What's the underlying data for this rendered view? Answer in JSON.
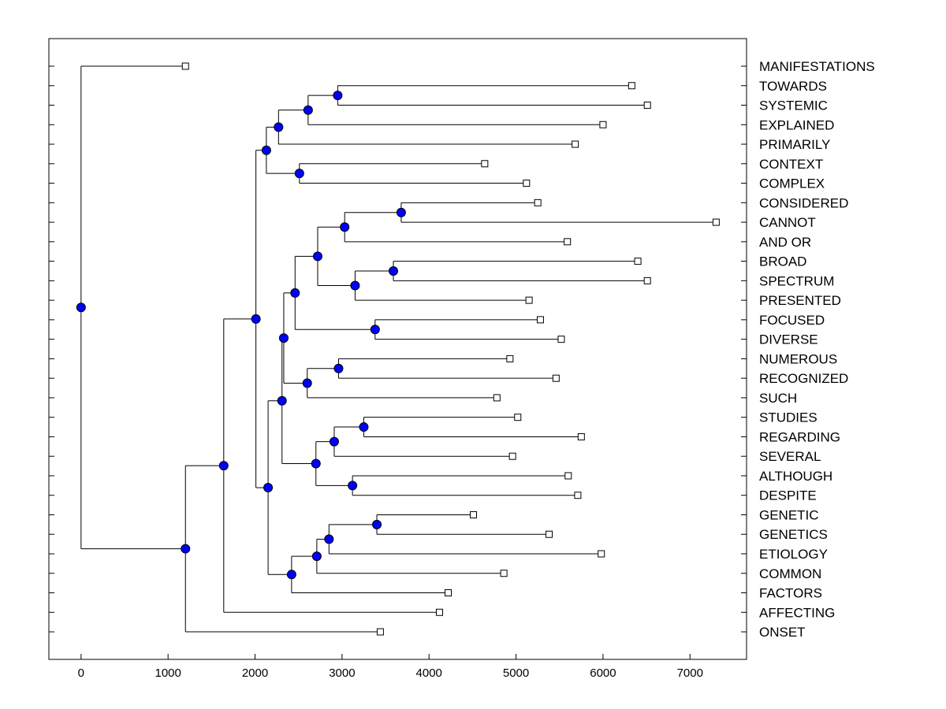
{
  "chart_data": {
    "type": "dendrogram",
    "title": "",
    "xlabel": "",
    "ylabel": "",
    "xlim": [
      -370,
      7650
    ],
    "x_ticks": [
      0,
      1000,
      2000,
      3000,
      4000,
      5000,
      6000,
      7000
    ],
    "x_tick_labels": [
      "0",
      "1000",
      "2000",
      "3000",
      "4000",
      "5000",
      "6000",
      "7000"
    ],
    "node_color": "#0000ff",
    "leaf_marker_color": "#ffffff",
    "leaves": [
      {
        "label": "MANIFESTATIONS",
        "value": 1200
      },
      {
        "label": "TOWARDS",
        "value": 6330
      },
      {
        "label": "SYSTEMIC",
        "value": 6510
      },
      {
        "label": "EXPLAINED",
        "value": 6000
      },
      {
        "label": "PRIMARILY",
        "value": 5680
      },
      {
        "label": "CONTEXT",
        "value": 4640
      },
      {
        "label": "COMPLEX",
        "value": 5120
      },
      {
        "label": "CONSIDERED",
        "value": 5250
      },
      {
        "label": "CANNOT",
        "value": 7300
      },
      {
        "label": "AND OR",
        "value": 5590
      },
      {
        "label": "BROAD",
        "value": 6400
      },
      {
        "label": "SPECTRUM",
        "value": 6510
      },
      {
        "label": "PRESENTED",
        "value": 5150
      },
      {
        "label": "FOCUSED",
        "value": 5280
      },
      {
        "label": "DIVERSE",
        "value": 5520
      },
      {
        "label": "NUMEROUS",
        "value": 4930
      },
      {
        "label": "RECOGNIZED",
        "value": 5460
      },
      {
        "label": "SUCH",
        "value": 4780
      },
      {
        "label": "STUDIES",
        "value": 5020
      },
      {
        "label": "REGARDING",
        "value": 5750
      },
      {
        "label": "SEVERAL",
        "value": 4960
      },
      {
        "label": "ALTHOUGH",
        "value": 5600
      },
      {
        "label": "DESPITE",
        "value": 5710
      },
      {
        "label": "GENETIC",
        "value": 4510
      },
      {
        "label": "GENETICS",
        "value": 5380
      },
      {
        "label": "ETIOLOGY",
        "value": 5980
      },
      {
        "label": "COMMON",
        "value": 4860
      },
      {
        "label": "FACTORS",
        "value": 4220
      },
      {
        "label": "AFFECTING",
        "value": 4120
      },
      {
        "label": "ONSET",
        "value": 3440
      }
    ],
    "tree": {
      "v": 0,
      "c": [
        {
          "leaf": 0
        },
        {
          "v": 1200,
          "c": [
            {
              "v": 1640,
              "c": [
                {
                  "v": 2010,
                  "c": [
                    {
                      "v": 2130,
                      "c": [
                        {
                          "v": 2270,
                          "c": [
                            {
                              "v": 2610,
                              "c": [
                                {
                                  "v": 2950,
                                  "c": [
                                    {
                                      "leaf": 1
                                    },
                                    {
                                      "leaf": 2
                                    }
                                  ]
                                },
                                {
                                  "leaf": 3
                                }
                              ]
                            },
                            {
                              "leaf": 4
                            }
                          ]
                        },
                        {
                          "v": 2510,
                          "c": [
                            {
                              "leaf": 5
                            },
                            {
                              "leaf": 6
                            }
                          ]
                        }
                      ]
                    },
                    {
                      "v": 2150,
                      "c": [
                        {
                          "v": 2310,
                          "c": [
                            {
                              "v": 2330,
                              "c": [
                                {
                                  "v": 2460,
                                  "c": [
                                    {
                                      "v": 2720,
                                      "c": [
                                        {
                                          "v": 3030,
                                          "c": [
                                            {
                                              "v": 3680,
                                              "c": [
                                                {
                                                  "leaf": 7
                                                },
                                                {
                                                  "leaf": 8
                                                }
                                              ]
                                            },
                                            {
                                              "leaf": 9
                                            }
                                          ]
                                        },
                                        {
                                          "v": 3150,
                                          "c": [
                                            {
                                              "v": 3590,
                                              "c": [
                                                {
                                                  "leaf": 10
                                                },
                                                {
                                                  "leaf": 11
                                                }
                                              ]
                                            },
                                            {
                                              "leaf": 12
                                            }
                                          ]
                                        }
                                      ]
                                    },
                                    {
                                      "v": 3380,
                                      "c": [
                                        {
                                          "leaf": 13
                                        },
                                        {
                                          "leaf": 14
                                        }
                                      ]
                                    }
                                  ]
                                },
                                {
                                  "v": 2600,
                                  "c": [
                                    {
                                      "v": 2960,
                                      "c": [
                                        {
                                          "leaf": 15
                                        },
                                        {
                                          "leaf": 16
                                        }
                                      ]
                                    },
                                    {
                                      "leaf": 17
                                    }
                                  ]
                                }
                              ]
                            },
                            {
                              "v": 2700,
                              "c": [
                                {
                                  "v": 2910,
                                  "c": [
                                    {
                                      "v": 3250,
                                      "c": [
                                        {
                                          "leaf": 18
                                        },
                                        {
                                          "leaf": 19
                                        }
                                      ]
                                    },
                                    {
                                      "leaf": 20
                                    }
                                  ]
                                },
                                {
                                  "v": 3120,
                                  "c": [
                                    {
                                      "leaf": 21
                                    },
                                    {
                                      "leaf": 22
                                    }
                                  ]
                                }
                              ]
                            }
                          ]
                        },
                        {
                          "v": 2420,
                          "c": [
                            {
                              "v": 2710,
                              "c": [
                                {
                                  "v": 2850,
                                  "c": [
                                    {
                                      "v": 3400,
                                      "c": [
                                        {
                                          "leaf": 23
                                        },
                                        {
                                          "leaf": 24
                                        }
                                      ]
                                    },
                                    {
                                      "leaf": 25
                                    }
                                  ]
                                },
                                {
                                  "leaf": 26
                                }
                              ]
                            },
                            {
                              "leaf": 27
                            }
                          ]
                        }
                      ]
                    }
                  ]
                },
                {
                  "leaf": 28
                }
              ]
            },
            {
              "leaf": 29
            }
          ]
        }
      ]
    }
  }
}
